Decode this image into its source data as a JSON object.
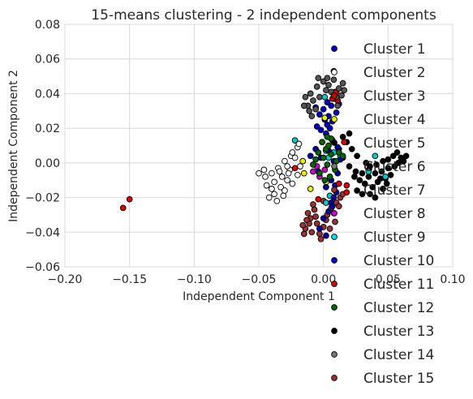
{
  "chart_data": {
    "type": "scatter",
    "title": "15-means clustering - 2 independent components",
    "xlabel": "Independent Component 1",
    "ylabel": "Independent Component 2",
    "xlim": [
      -0.2,
      0.1
    ],
    "ylim": [
      -0.06,
      0.08
    ],
    "xticks": [
      -0.2,
      -0.15,
      -0.1,
      -0.05,
      0.0,
      0.05,
      0.1
    ],
    "xtick_labels": [
      "−0.20",
      "−0.15",
      "−0.10",
      "−0.05",
      "0.00",
      "0.05",
      "0.10"
    ],
    "yticks": [
      -0.06,
      -0.04,
      -0.02,
      0.0,
      0.02,
      0.04,
      0.06,
      0.08
    ],
    "ytick_labels": [
      "−0.06",
      "−0.04",
      "−0.02",
      "0.00",
      "0.02",
      "0.04",
      "0.06",
      "0.08"
    ],
    "grid": true,
    "legend_position": "right, overlapping the plot and extending below it",
    "series": [
      {
        "name": "Cluster 1",
        "color": "#0000cc",
        "points": [
          [
            0.0,
            0.031
          ],
          [
            0.003,
            0.035
          ],
          [
            0.006,
            0.033
          ],
          [
            -0.003,
            0.028
          ],
          [
            0.008,
            0.037
          ],
          [
            0.001,
            0.025
          ],
          [
            -0.005,
            0.021
          ],
          [
            0.004,
            0.027
          ],
          [
            0.01,
            0.029
          ],
          [
            -0.002,
            0.019
          ],
          [
            0.007,
            0.024
          ],
          [
            -0.006,
            0.032
          ],
          [
            0.012,
            0.034
          ],
          [
            0.002,
            0.017
          ],
          [
            -0.001,
            0.012
          ],
          [
            0.003,
            0.022
          ],
          [
            0.005,
            0.02
          ],
          [
            0.009,
            0.041
          ]
        ]
      },
      {
        "name": "Cluster 2",
        "color": "#ffffff",
        "points": [
          [
            -0.02,
            0.009
          ],
          [
            -0.025,
            0.004
          ],
          [
            -0.03,
            0.001
          ],
          [
            -0.035,
            -0.003
          ],
          [
            -0.04,
            -0.006
          ],
          [
            -0.045,
            -0.008
          ],
          [
            -0.05,
            -0.006
          ],
          [
            -0.028,
            -0.01
          ],
          [
            -0.033,
            -0.014
          ],
          [
            -0.038,
            -0.018
          ],
          [
            -0.042,
            -0.02
          ],
          [
            -0.036,
            -0.022
          ],
          [
            -0.03,
            -0.016
          ],
          [
            -0.024,
            -0.012
          ],
          [
            -0.02,
            -0.007
          ],
          [
            -0.018,
            -0.002
          ],
          [
            -0.022,
            0.003
          ],
          [
            -0.026,
            -0.004
          ],
          [
            -0.032,
            -0.008
          ],
          [
            -0.038,
            -0.011
          ],
          [
            -0.044,
            -0.013
          ],
          [
            -0.04,
            -0.015
          ],
          [
            -0.034,
            -0.005
          ],
          [
            -0.028,
            -0.002
          ],
          [
            -0.024,
            0.006
          ],
          [
            -0.019,
            0.011
          ],
          [
            -0.016,
            0.001
          ],
          [
            -0.046,
            -0.004
          ],
          [
            -0.031,
            -0.019
          ],
          [
            -0.027,
            -0.006
          ]
        ]
      },
      {
        "name": "Cluster 3",
        "color": "#cc0000",
        "points": [
          [
            0.008,
            0.053
          ],
          [
            0.007,
            0.037
          ],
          [
            0.01,
            0.041
          ],
          [
            0.011,
            0.036
          ]
        ]
      },
      {
        "name": "Cluster 4",
        "color": "#eeee00",
        "points": [
          [
            0.001,
            0.026
          ],
          [
            -0.016,
            0.001
          ],
          [
            -0.015,
            -0.006
          ],
          [
            -0.01,
            -0.015
          ],
          [
            0.002,
            -0.011
          ]
        ]
      },
      {
        "name": "Cluster 5",
        "color": "#000000",
        "points": [
          [
            0.02,
            -0.002
          ],
          [
            0.025,
            -0.005
          ],
          [
            0.03,
            -0.006
          ],
          [
            0.035,
            -0.008
          ],
          [
            0.04,
            -0.006
          ],
          [
            0.045,
            -0.005
          ],
          [
            0.05,
            -0.003
          ],
          [
            0.055,
            -0.002
          ],
          [
            0.032,
            -0.012
          ],
          [
            0.028,
            -0.01
          ],
          [
            0.038,
            -0.014
          ],
          [
            0.042,
            -0.011
          ],
          [
            0.048,
            -0.009
          ],
          [
            0.052,
            -0.007
          ],
          [
            0.058,
            0.0
          ],
          [
            0.06,
            0.003
          ],
          [
            0.022,
            0.008
          ],
          [
            0.018,
            0.012
          ],
          [
            0.015,
            0.015
          ],
          [
            0.02,
            0.017
          ],
          [
            0.026,
            0.004
          ],
          [
            0.033,
            0.0
          ],
          [
            0.036,
            -0.002
          ],
          [
            0.041,
            -0.001
          ],
          [
            0.046,
            0.001
          ],
          [
            0.05,
            0.002
          ],
          [
            0.054,
            0.004
          ],
          [
            0.057,
            0.006
          ],
          [
            0.03,
            -0.018
          ],
          [
            0.026,
            -0.016
          ],
          [
            0.036,
            -0.018
          ],
          [
            0.04,
            -0.02
          ],
          [
            0.046,
            -0.015
          ],
          [
            0.035,
            -0.004
          ],
          [
            0.024,
            -0.008
          ],
          [
            0.044,
            -0.009
          ],
          [
            0.049,
            -0.012
          ],
          [
            0.012,
            0.008
          ],
          [
            0.015,
            0.003
          ],
          [
            0.062,
            0.001
          ],
          [
            0.064,
            0.004
          ]
        ]
      },
      {
        "name": "Cluster 6",
        "color": "#555555",
        "points": [
          [
            -0.01,
            0.04
          ],
          [
            -0.005,
            0.044
          ],
          [
            0.0,
            0.047
          ],
          [
            0.004,
            0.045
          ],
          [
            -0.008,
            0.036
          ],
          [
            -0.012,
            0.033
          ],
          [
            -0.003,
            0.038
          ],
          [
            0.006,
            0.041
          ],
          [
            0.012,
            0.043
          ],
          [
            0.015,
            0.046
          ],
          [
            0.008,
            0.048
          ],
          [
            -0.014,
            0.038
          ],
          [
            -0.006,
            0.031
          ],
          [
            0.002,
            0.042
          ],
          [
            0.01,
            0.038
          ],
          [
            -0.009,
            0.027
          ],
          [
            -0.011,
            0.03
          ],
          [
            0.014,
            0.039
          ],
          [
            -0.004,
            0.049
          ],
          [
            0.003,
            0.049
          ],
          [
            0.011,
            0.033
          ],
          [
            -0.015,
            0.033
          ],
          [
            0.016,
            0.042
          ]
        ]
      },
      {
        "name": "Cluster 7",
        "color": "#993333",
        "points": [
          [
            -0.01,
            -0.032
          ],
          [
            -0.005,
            -0.035
          ],
          [
            0.0,
            -0.037
          ],
          [
            -0.012,
            -0.029
          ],
          [
            -0.007,
            -0.027
          ],
          [
            0.003,
            -0.03
          ],
          [
            0.006,
            -0.026
          ],
          [
            0.01,
            -0.023
          ],
          [
            0.013,
            -0.02
          ],
          [
            -0.014,
            -0.038
          ],
          [
            -0.009,
            -0.04
          ],
          [
            -0.003,
            -0.041
          ],
          [
            0.002,
            -0.033
          ],
          [
            -0.006,
            -0.031
          ],
          [
            0.008,
            -0.029
          ],
          [
            0.012,
            -0.025
          ],
          [
            0.015,
            -0.018
          ],
          [
            -0.011,
            -0.035
          ],
          [
            -0.016,
            -0.036
          ],
          [
            -0.013,
            -0.033
          ],
          [
            0.005,
            -0.038
          ],
          [
            -0.002,
            -0.044
          ],
          [
            -0.008,
            -0.024
          ],
          [
            0.0,
            -0.022
          ],
          [
            -0.015,
            -0.041
          ],
          [
            0.009,
            -0.034
          ]
        ]
      },
      {
        "name": "Cluster 8",
        "color": "#cc00cc",
        "points": [
          [
            -0.005,
            -0.002
          ],
          [
            -0.008,
            -0.005
          ],
          [
            -0.003,
            -0.008
          ],
          [
            0.001,
            -0.004
          ]
        ]
      },
      {
        "name": "Cluster 9",
        "color": "#00cccc",
        "points": [
          [
            -0.022,
            0.013
          ],
          [
            0.001,
            0.038
          ],
          [
            0.002,
            0.007
          ],
          [
            0.004,
            0.003
          ],
          [
            0.008,
            0.006
          ],
          [
            0.035,
            -0.005
          ],
          [
            0.04,
            0.004
          ],
          [
            0.048,
            -0.008
          ],
          [
            0.013,
            0.004
          ],
          [
            0.005,
            -0.019
          ],
          [
            0.002,
            -0.023
          ]
        ]
      },
      {
        "name": "Cluster 10",
        "color": "#0000aa",
        "points": [
          [
            -0.002,
            0.003
          ],
          [
            0.004,
            0.007
          ],
          [
            0.008,
            0.001
          ],
          [
            0.011,
            -0.006
          ],
          [
            -0.004,
            -0.005
          ],
          [
            0.006,
            -0.01
          ],
          [
            0.009,
            -0.013
          ],
          [
            -0.006,
            0.008
          ],
          [
            0.002,
            -0.014
          ],
          [
            0.013,
            0.002
          ],
          [
            0.006,
            -0.023
          ],
          [
            0.004,
            -0.028
          ],
          [
            0.0,
            -0.032
          ],
          [
            0.008,
            -0.02
          ],
          [
            0.01,
            -0.017
          ],
          [
            -0.003,
            -0.038
          ],
          [
            0.002,
            -0.042
          ],
          [
            0.007,
            -0.025
          ],
          [
            -0.01,
            0.004
          ],
          [
            0.011,
            0.009
          ]
        ]
      },
      {
        "name": "Cluster 11",
        "color": "#dd0000",
        "points": [
          [
            -0.155,
            -0.026
          ],
          [
            -0.15,
            -0.021
          ],
          [
            -0.022,
            -0.003
          ],
          [
            0.012,
            -0.012
          ],
          [
            0.018,
            -0.013
          ],
          [
            0.016,
            0.012
          ],
          [
            0.018,
            -0.017
          ],
          [
            -0.004,
            -0.021
          ]
        ]
      },
      {
        "name": "Cluster 12",
        "color": "#006600",
        "points": [
          [
            0.0,
            0.003
          ],
          [
            0.003,
            -0.001
          ],
          [
            0.006,
            0.005
          ],
          [
            -0.003,
            -0.006
          ],
          [
            0.002,
            0.008
          ],
          [
            0.009,
            -0.004
          ],
          [
            -0.006,
            0.002
          ],
          [
            0.005,
            -0.008
          ],
          [
            0.012,
            0.006
          ],
          [
            -0.001,
            0.012
          ],
          [
            0.007,
            0.013
          ],
          [
            0.004,
            0.01
          ],
          [
            0.01,
            0.001
          ],
          [
            -0.008,
            -0.001
          ],
          [
            0.015,
            0.004
          ],
          [
            0.008,
            0.039
          ],
          [
            0.001,
            -0.01
          ],
          [
            0.006,
            0.014
          ],
          [
            -0.004,
            0.006
          ],
          [
            0.003,
            0.015
          ]
        ]
      }
    ],
    "legend": [
      {
        "label": "Cluster 1",
        "color": "#0000cc"
      },
      {
        "label": "Cluster 2",
        "color": "#ffffff"
      },
      {
        "label": "Cluster 3",
        "color": "#cc0000"
      },
      {
        "label": "Cluster 4",
        "color": "#eeee00"
      },
      {
        "label": "Cluster 5",
        "color": "#000000"
      },
      {
        "label": "Cluster 6",
        "color": "#777777"
      },
      {
        "label": "Cluster 7",
        "color": "#993333"
      },
      {
        "label": "Cluster 8",
        "color": "#cc00cc"
      },
      {
        "label": "Cluster 9",
        "color": "#00e5e5"
      },
      {
        "label": "Cluster 10",
        "color": "#0000cc"
      },
      {
        "label": "Cluster 11",
        "color": "#dd0000"
      },
      {
        "label": "Cluster 12",
        "color": "#006600"
      },
      {
        "label": "Cluster 13",
        "color": "#000000"
      },
      {
        "label": "Cluster 14",
        "color": "#777777"
      },
      {
        "label": "Cluster 15",
        "color": "#993333"
      }
    ]
  }
}
